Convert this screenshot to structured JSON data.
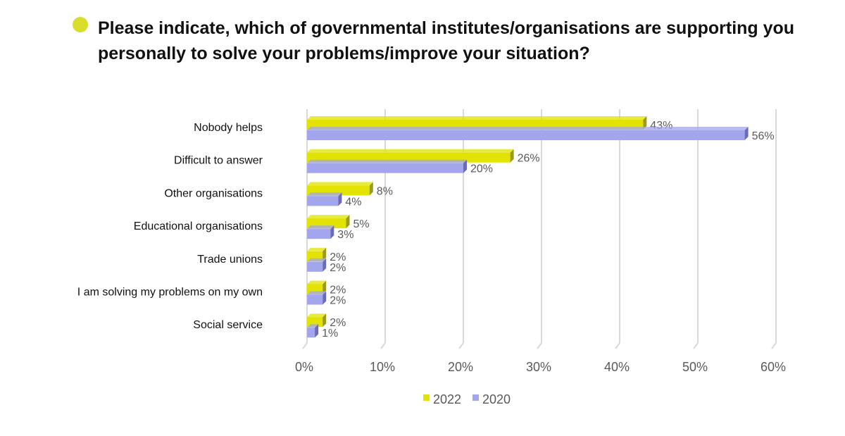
{
  "title": "Please indicate, which of governmental institutes/organisations are supporting you personally to solve your problems/improve your situation?",
  "colors": {
    "accent": "#d9dd2b",
    "s2022": "#e2e300",
    "s2022_dark": "#9a9a1f",
    "s2020": "#a3a6ec",
    "s2020_dark": "#6a6cb6",
    "grid": "#d9d9d9",
    "axis_text": "#595959",
    "label_text": "#111111"
  },
  "chart_data": {
    "type": "bar",
    "orientation": "horizontal",
    "title": "Please indicate, which of governmental institutes/organisations are supporting you personally to solve your problems/improve your situation?",
    "categories": [
      "Nobody helps",
      "Difficult to answer",
      "Other organisations",
      "Educational organisations",
      "Trade unions",
      "I am solving my problems on my own",
      "Social service"
    ],
    "series": [
      {
        "name": "2022",
        "values": [
          43,
          26,
          8,
          5,
          2,
          2,
          2
        ]
      },
      {
        "name": "2020",
        "values": [
          56,
          20,
          4,
          3,
          2,
          2,
          1
        ]
      }
    ],
    "xlim": [
      0,
      60
    ],
    "xticks": [
      "0%",
      "10%",
      "20%",
      "30%",
      "40%",
      "50%",
      "60%"
    ],
    "value_suffix": "%",
    "grid": true,
    "legend_position": "bottom"
  }
}
